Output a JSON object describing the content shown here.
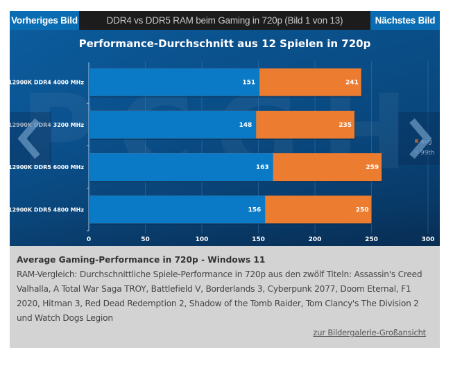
{
  "gallery": {
    "prev_label": "Vorheriges Bild",
    "next_label": "Nächstes Bild",
    "title": "DDR4 vs DDR5 RAM beim Gaming in 720p  (Bild 1 von 13)"
  },
  "icons": {
    "left_arrow": "chevron-left-icon",
    "right_arrow": "chevron-right-icon"
  },
  "colors": {
    "bar_99th": "#0a7ac6",
    "bar_avg": "#ec7d30",
    "nav_blue": "#0a6db3"
  },
  "chart_data": {
    "type": "bar",
    "orientation": "horizontal",
    "stacked": false,
    "title": "Performance-Durchschnitt aus 12 Spielen in 720p",
    "xlabel": "",
    "ylabel": "",
    "categories": [
      "12900K DDR4 4000 MHz",
      "12900K DDR4 3200 MHz",
      "12900K DDR5 6000 MHz",
      "12900K DDR5 4800 MHz"
    ],
    "series": [
      {
        "name": "avg",
        "values": [
          241,
          235,
          259,
          250
        ]
      },
      {
        "name": "99th",
        "values": [
          151,
          148,
          163,
          156
        ]
      }
    ],
    "xlim": [
      0,
      300
    ],
    "xticks": [
      0,
      50,
      100,
      150,
      200,
      250,
      300
    ],
    "grid": true,
    "legend": {
      "position": "right",
      "entries": [
        "avg",
        "99th"
      ]
    },
    "watermark": "PCGH"
  },
  "caption": {
    "title": "Average Gaming-Performance in 720p - Windows 11",
    "text": "RAM-Vergleich: Durchschnittliche Spiele-Performance in 720p aus den zwölf Titeln: Assassin's Creed Valhalla, A Total War Saga TROY, Battlefield V, Borderlands 3, Cyberpunk 2077, Doom Eternal, F1 2020, Hitman 3, Red Dead Redemption 2, Shadow of the Tomb Raider, Tom Clancy's The Division 2 und Watch Dogs Legion",
    "link": "zur Bildergalerie-Großansicht"
  }
}
